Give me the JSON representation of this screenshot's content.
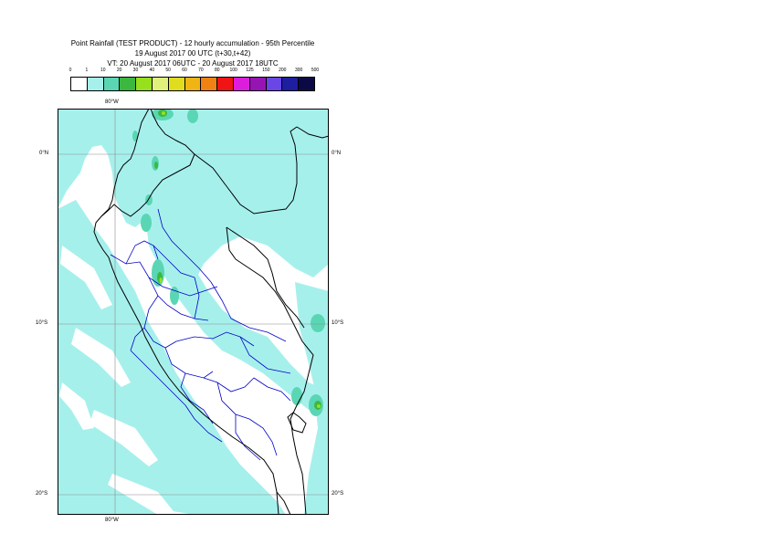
{
  "title": {
    "line1": "Point Rainfall (TEST PRODUCT) - 12 hourly accumulation - 95th Percentile",
    "line2": "19 August 2017 00 UTC (t+30,t+42)",
    "line3": "VT: 20 August 2017 06UTC - 20 August 2017 18UTC"
  },
  "legend": {
    "ticks": [
      "0",
      "1",
      "10",
      "20",
      "30",
      "40",
      "50",
      "60",
      "70",
      "80",
      "100",
      "125",
      "150",
      "200",
      "300",
      "500"
    ],
    "colors": [
      "#ffffff",
      "#a6f0ec",
      "#5ad6b4",
      "#3cb840",
      "#96e01e",
      "#e0f07a",
      "#e0dc1e",
      "#f0b414",
      "#f08214",
      "#f01414",
      "#dc1edc",
      "#9614b4",
      "#6a46e6",
      "#1e1ea0",
      "#0c0a46"
    ]
  },
  "map": {
    "labels": {
      "lon_top": "80°W",
      "lon_bottom": "80°W",
      "lat0_left": "0°N",
      "lat0_right": "0°N",
      "lat10_left": "10°S",
      "lat10_right": "10°S",
      "lat20_left": "20°S",
      "lat20_right": "20°S"
    },
    "colors": {
      "light_rain": "#a6f0ec",
      "moderate_rain": "#5ad6b4",
      "heavy_rain": "#3cb840",
      "very_heavy": "#96e01e",
      "country_border": "#000000",
      "region_border": "#0000c8",
      "gridline": "#808080"
    }
  }
}
